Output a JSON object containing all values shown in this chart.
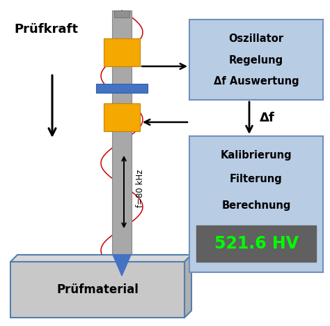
{
  "bg_color": "#ffffff",
  "probe_color": "#a8a8a8",
  "yellow_color": "#f5a800",
  "blue_color": "#4472c4",
  "box1_color": "#b8cce4",
  "box2_color": "#b8cce4",
  "hv_bg_color": "#606060",
  "hv_text_color": "#00ff00",
  "material_color": "#c8c8c8",
  "material_border": "#5080b0",
  "text_color": "#000000",
  "red_wave_color": "#cc0000",
  "title_pruefkraft": "Prüfkraft",
  "title_pruefmaterial": "Prüfmaterial",
  "box1_lines": [
    "Oszillator",
    "Regelung",
    "Δf Auswertung"
  ],
  "box2_lines": [
    "Kalibrierung",
    "Filterung",
    "Berechnung"
  ],
  "hv_value": "521.6 HV",
  "delta_f_label": "Δf",
  "freq_label": "f=80 kHz",
  "figw": 4.74,
  "figh": 4.67,
  "dpi": 100
}
